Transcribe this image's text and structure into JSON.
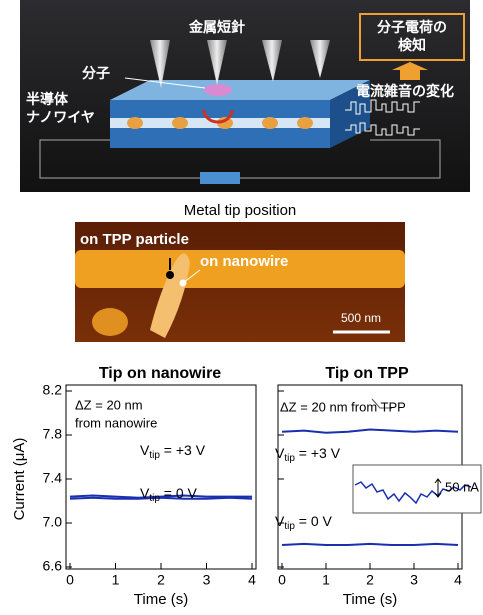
{
  "diagram": {
    "tip_label": "金属短針",
    "molecule_label": "分子",
    "wire_label_1": "半導体",
    "wire_label_2": "ナノワイヤ",
    "detect_label_1": "分子電荷の",
    "detect_label_2": "検知",
    "noise_label": "電流雑音の変化"
  },
  "afm_image": {
    "title": "Metal tip position",
    "label_tpp": "on TPP particle",
    "label_wire": "on nanowire",
    "scale": "500 nm"
  },
  "chart_data": [
    {
      "type": "line",
      "title": "Tip on nanowire",
      "x_label": "Time (s)",
      "y_label": "Current (μA)",
      "xlim": [
        0,
        4
      ],
      "xticks": [
        0,
        1,
        2,
        3,
        4
      ],
      "ylim": [
        6.6,
        8.2
      ],
      "yticks": [
        6.6,
        {
          "value": 7,
          "label": "7.0"
        },
        7.4,
        7.8,
        8.2
      ],
      "annotations": [
        "ΔZ = 20 nm",
        "from nanowire",
        {
          "main": "V",
          "sub": "tip",
          "rest": " = +3 V"
        },
        {
          "main": "V",
          "sub": "tip",
          "rest": " = 0 V"
        }
      ],
      "series": [
        {
          "color": "#1a2fb0",
          "x": [
            0,
            0.5,
            1,
            1.5,
            2,
            2.5,
            3,
            3.5,
            4
          ],
          "values": [
            7.24,
            7.25,
            7.24,
            7.23,
            7.24,
            7.25,
            7.24,
            7.24,
            7.24
          ]
        },
        {
          "color": "#1a2fb0",
          "x": [
            0,
            0.5,
            1,
            1.5,
            2,
            2.5,
            3,
            3.5,
            4
          ],
          "values": [
            7.22,
            7.23,
            7.22,
            7.22,
            7.23,
            7.22,
            7.22,
            7.23,
            7.22
          ]
        }
      ]
    },
    {
      "type": "line",
      "title": "Tip on TPP",
      "x_label": "Time (s)",
      "xlim": [
        0,
        4
      ],
      "xticks": [
        0,
        1,
        2,
        3,
        4
      ],
      "ylim": [
        6.6,
        8.2
      ],
      "yticks": [
        6.6,
        7,
        7.4,
        7.8,
        8.2
      ],
      "annotations": [
        "ΔZ = 20 nm from TPP",
        {
          "main": "V",
          "sub": "tip",
          "rest": " = +3 V"
        },
        {
          "main": "V",
          "sub": "tip",
          "rest": " = 0 V"
        },
        "50 nA"
      ],
      "series": [
        {
          "color": "#1a2fb0",
          "x": [
            0,
            0.5,
            1,
            1.5,
            2,
            2.5,
            3,
            3.5,
            4
          ],
          "values": [
            7.83,
            7.84,
            7.82,
            7.83,
            7.85,
            7.84,
            7.83,
            7.84,
            7.83
          ]
        },
        {
          "color": "#1a2fb0",
          "x": [
            0,
            0.5,
            1,
            1.5,
            2,
            2.5,
            3,
            3.5,
            4
          ],
          "values": [
            6.8,
            6.81,
            6.8,
            6.8,
            6.81,
            6.8,
            6.8,
            6.81,
            6.8
          ]
        }
      ]
    }
  ]
}
